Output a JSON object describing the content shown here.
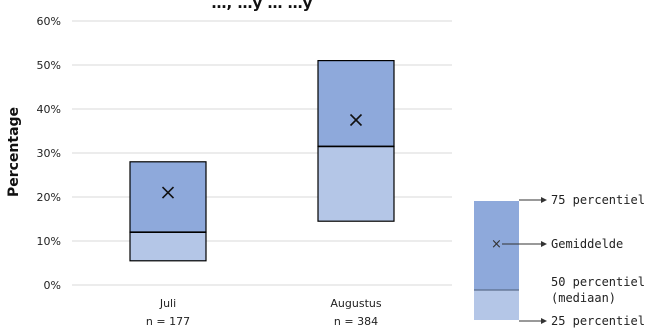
{
  "chart_data": {
    "type": "box",
    "title": "…, …y … …y",
    "ylabel": "Percentage",
    "ylim": [
      0,
      60
    ],
    "yticks": [
      "0%",
      "10%",
      "20%",
      "30%",
      "40%",
      "50%",
      "60%"
    ],
    "categories": [
      {
        "label": "Juli",
        "n_label": "n = 177",
        "p25": 5.5,
        "p50": 12,
        "p75": 28,
        "mean": 21
      },
      {
        "label": "Augustus",
        "n_label": "n = 384",
        "p25": 14.5,
        "p50": 31.5,
        "p75": 51,
        "mean": 37.5
      }
    ],
    "colors": {
      "upper_box": "#8EA9DB",
      "lower_box": "#B4C6E7",
      "border": "#000000",
      "grid": "#d9d9d9"
    }
  },
  "legend": {
    "p75": "75 percentiel",
    "mean": "Gemiddelde",
    "p50": "50 percentiel",
    "p50_sub": "(mediaan)",
    "p25": "25 percentiel"
  }
}
